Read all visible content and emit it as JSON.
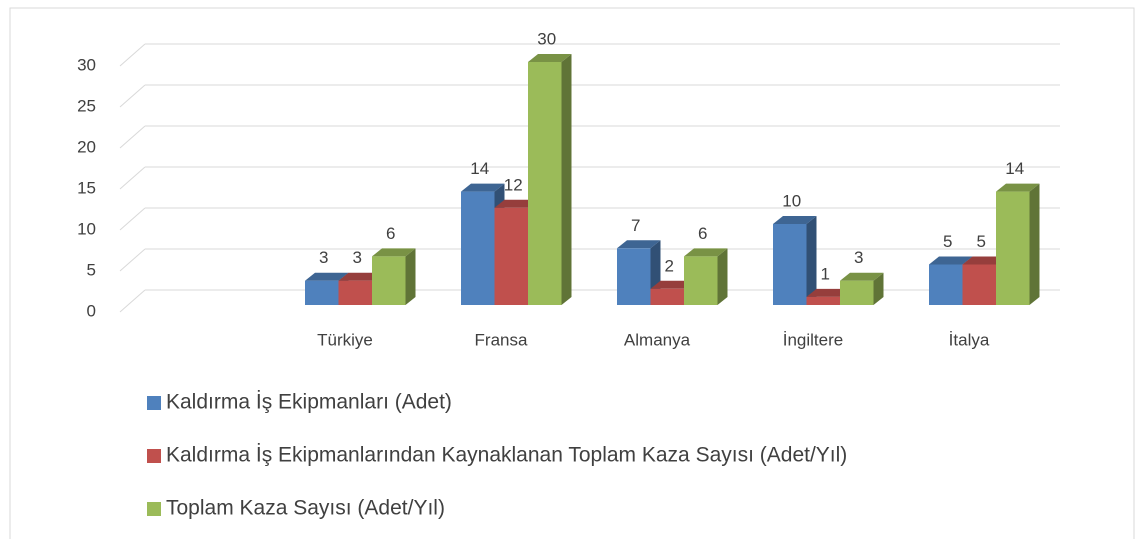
{
  "chart_data": {
    "type": "bar3d",
    "categories": [
      null,
      "Türkiye",
      "Fransa",
      "Almanya",
      "İngiltere",
      "İtalya"
    ],
    "series": [
      {
        "name": "Kaldırma İş Ekipmanları (Adet)",
        "color": "#4f81bd",
        "values": [
          null,
          3,
          14,
          7,
          10,
          5
        ]
      },
      {
        "name": "Kaldırma İş Ekipmanlarından Kaynaklanan Toplam Kaza Sayısı (Adet/Yıl)",
        "color": "#c0504d",
        "values": [
          null,
          3,
          12,
          2,
          1,
          5
        ]
      },
      {
        "name": "Toplam Kaza Sayısı (Adet/Yıl)",
        "color": "#9bbb59",
        "values": [
          null,
          6,
          30,
          6,
          3,
          14
        ]
      }
    ],
    "ylim": [
      0,
      30
    ],
    "yticks": [
      0,
      5,
      10,
      15,
      20,
      25,
      30
    ],
    "grid": true,
    "legend": "bottom"
  }
}
